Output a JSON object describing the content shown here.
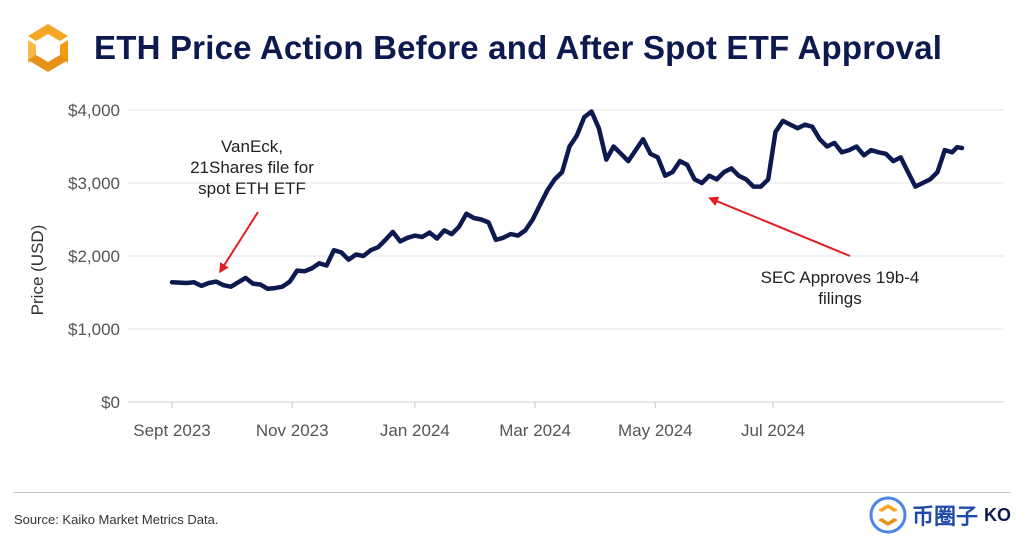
{
  "header": {
    "title": "ETH Price Action Before and After Spot ETF Approval"
  },
  "footer": {
    "source": "Source: Kaiko Market Metrics Data.",
    "watermark_text": "币圈子",
    "watermark_brand": "KO"
  },
  "colors": {
    "line": "#0d1a4f",
    "arrow": "#e02020",
    "grid": "#e6e6e6",
    "logo_orange": "#f5a623"
  },
  "chart_data": {
    "type": "line",
    "title": "ETH Price Action Before and After Spot ETF Approval",
    "xlabel": "",
    "ylabel": "Price (USD)",
    "ylim": [
      0,
      4000
    ],
    "yticks": [
      {
        "v": 0,
        "label": "$0"
      },
      {
        "v": 1000,
        "label": "$1,000"
      },
      {
        "v": 2000,
        "label": "$2,000"
      },
      {
        "v": 3000,
        "label": "$3,000"
      },
      {
        "v": 4000,
        "label": "$4,000"
      }
    ],
    "xlim": [
      0,
      322
    ],
    "xticks": [
      {
        "v": 0,
        "label": "Sept 2023"
      },
      {
        "v": 49,
        "label": "Nov 2023"
      },
      {
        "v": 99,
        "label": "Jan 2024"
      },
      {
        "v": 148,
        "label": "Mar 2024"
      },
      {
        "v": 197,
        "label": "May 2024"
      },
      {
        "v": 245,
        "label": "Jul 2024"
      }
    ],
    "series": [
      {
        "name": "ETH",
        "x": [
          0,
          6,
          9,
          12,
          15,
          18,
          21,
          24,
          27,
          30,
          33,
          36,
          39,
          42,
          45,
          48,
          51,
          54,
          57,
          60,
          63,
          66,
          69,
          72,
          75,
          78,
          81,
          84,
          87,
          90,
          93,
          96,
          99,
          102,
          105,
          108,
          111,
          114,
          117,
          120,
          123,
          126,
          129,
          132,
          135,
          138,
          141,
          144,
          147,
          150,
          153,
          156,
          159,
          162,
          165,
          168,
          171,
          174,
          177,
          180,
          183,
          186,
          189,
          192,
          195,
          198,
          201,
          204,
          207,
          210,
          213,
          216,
          219,
          222,
          225,
          228,
          231,
          234,
          237,
          240,
          243,
          246,
          249,
          252,
          255,
          258,
          261,
          264,
          267,
          270,
          273,
          276,
          279,
          282,
          285,
          288,
          291,
          294,
          297,
          300,
          303,
          306,
          309,
          312,
          315,
          318,
          320,
          322
        ],
        "y": [
          1640,
          1630,
          1640,
          1590,
          1630,
          1650,
          1600,
          1580,
          1640,
          1700,
          1620,
          1610,
          1550,
          1560,
          1580,
          1650,
          1800,
          1790,
          1830,
          1900,
          1870,
          2080,
          2050,
          1950,
          2020,
          2000,
          2080,
          2120,
          2220,
          2330,
          2200,
          2250,
          2280,
          2260,
          2320,
          2240,
          2350,
          2300,
          2400,
          2580,
          2520,
          2500,
          2460,
          2220,
          2250,
          2300,
          2280,
          2350,
          2500,
          2700,
          2900,
          3050,
          3150,
          3500,
          3650,
          3900,
          3980,
          3750,
          3320,
          3500,
          3400,
          3300,
          3450,
          3600,
          3400,
          3350,
          3100,
          3150,
          3300,
          3250,
          3050,
          3000,
          3100,
          3050,
          3150,
          3200,
          3100,
          3050,
          2950,
          2950,
          3050,
          3700,
          3850,
          3800,
          3750,
          3800,
          3770,
          3600,
          3500,
          3550,
          3420,
          3450,
          3500,
          3380,
          3450,
          3420,
          3400,
          3300,
          3350,
          3150,
          2950,
          3000,
          3050,
          3150,
          3450,
          3420,
          3490,
          3480
        ]
      }
    ],
    "annotations": [
      {
        "text": [
          "VanEck,",
          "21Shares file for",
          "spot ETH ETF"
        ],
        "target": {
          "x": 18,
          "y": 1650
        },
        "text_pos": "upper-left"
      },
      {
        "text": [
          "SEC Approves 19b-4",
          "filings"
        ],
        "target": {
          "x": 216,
          "y": 2900
        },
        "text_pos": "lower-right"
      }
    ]
  }
}
